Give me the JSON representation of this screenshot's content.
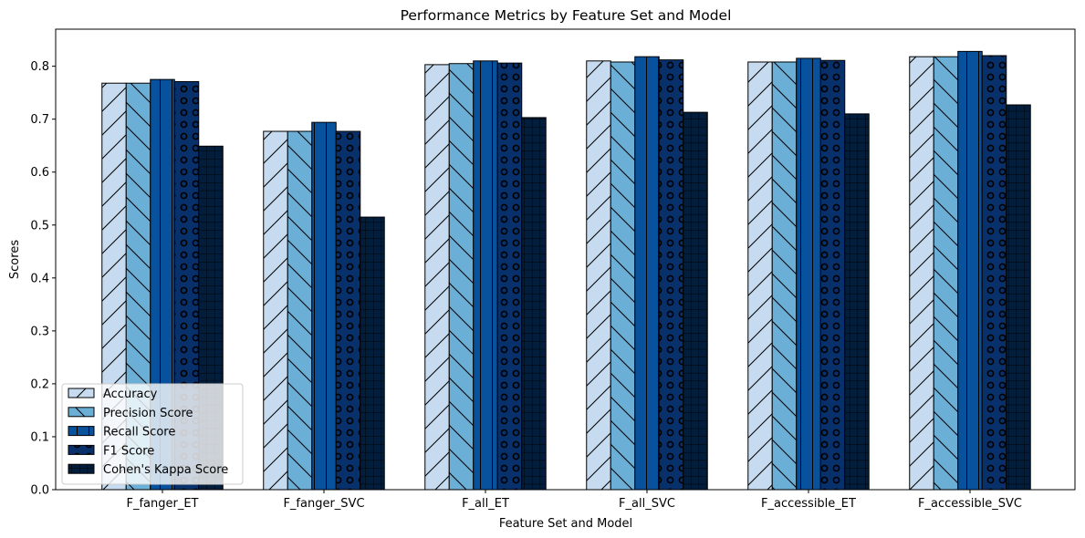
{
  "chart_data": {
    "type": "bar",
    "title": "Performance Metrics by Feature Set and Model",
    "xlabel": "Feature Set and Model",
    "ylabel": "Scores",
    "ylim": [
      0,
      0.87
    ],
    "yticks": [
      "0.0",
      "0.1",
      "0.2",
      "0.3",
      "0.4",
      "0.5",
      "0.6",
      "0.7",
      "0.8"
    ],
    "categories": [
      "F_fanger_ET",
      "F_fanger_SVC",
      "F_all_ET",
      "F_all_SVC",
      "F_accessible_ET",
      "F_accessible_SVC"
    ],
    "series": [
      {
        "name": "Accuracy",
        "values": [
          0.768,
          0.677,
          0.803,
          0.81,
          0.808,
          0.818
        ],
        "color": "#c6dbef",
        "hatch": "diagonal-up"
      },
      {
        "name": "Precision Score",
        "values": [
          0.768,
          0.677,
          0.805,
          0.808,
          0.808,
          0.818
        ],
        "color": "#6baed6",
        "hatch": "diagonal-down"
      },
      {
        "name": "Recall Score",
        "values": [
          0.775,
          0.694,
          0.81,
          0.818,
          0.815,
          0.828
        ],
        "color": "#08519c",
        "hatch": "vertical"
      },
      {
        "name": "F1 Score",
        "values": [
          0.771,
          0.677,
          0.806,
          0.812,
          0.811,
          0.82
        ],
        "color": "#08306b",
        "hatch": "circles"
      },
      {
        "name": "Cohen's Kappa Score",
        "values": [
          0.649,
          0.515,
          0.703,
          0.713,
          0.71,
          0.727
        ],
        "color": "#031e3d",
        "hatch": "grid"
      }
    ],
    "grid": false,
    "legend_position": "lower-left"
  }
}
